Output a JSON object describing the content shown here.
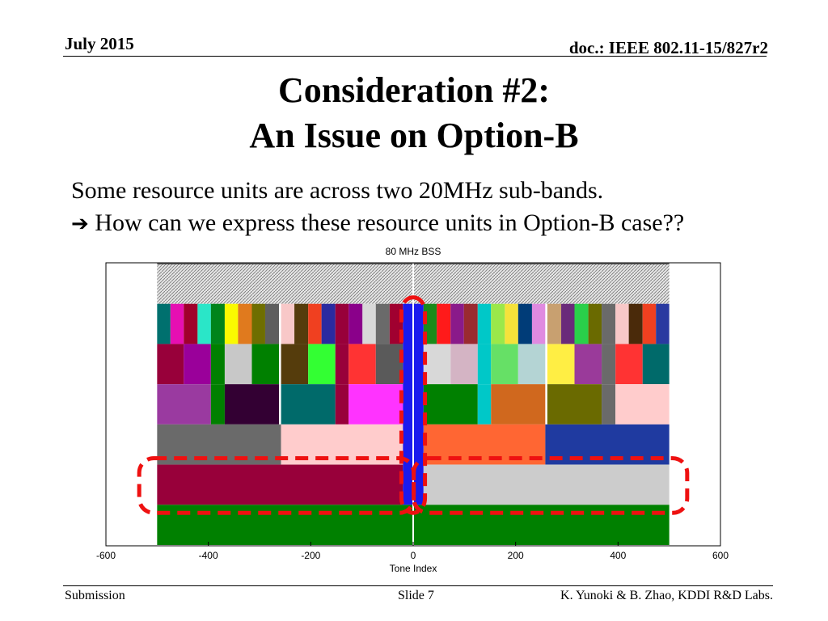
{
  "header": {
    "date": "July 2015",
    "doc": "doc.: IEEE 802.11-15/827r2"
  },
  "slide": {
    "title_line1": "Consideration #2:",
    "title_line2": "An Issue on Option-B",
    "body_line1": "Some resource units are across two 20MHz sub-bands.",
    "arrow_icon": "right-arrow-icon",
    "body_line2": "How can we express these resource units in Option-B case??"
  },
  "footer": {
    "left": "Submission",
    "center": "Slide 7",
    "right": "K. Yunoki & B. Zhao, KDDI R&D Labs."
  },
  "colors": {
    "highlight": "#ee1111",
    "dc_blue": "#1a1aee",
    "row_green": "#008000"
  },
  "chart_data": {
    "type": "heatmap",
    "title": "80 MHz BSS",
    "xlabel": "Tone Index",
    "ylabel": "",
    "xlim": [
      -600,
      600
    ],
    "xticks": [
      -600,
      -400,
      -200,
      0,
      200,
      400,
      600
    ],
    "grid": false,
    "rows": [
      {
        "level": 1,
        "pattern": "hatched",
        "blocks": [
          {
            "x0": -500,
            "x1": 500,
            "color": "#d8d8d8"
          }
        ]
      },
      {
        "level": 2,
        "blocks": [
          {
            "x0": -500,
            "x1": -474,
            "color": "#00706e"
          },
          {
            "x0": -474,
            "x1": -448,
            "color": "#e60fb2"
          },
          {
            "x0": -448,
            "x1": -421,
            "color": "#a0002c"
          },
          {
            "x0": -421,
            "x1": -395,
            "color": "#2ae6c8"
          },
          {
            "x0": -395,
            "x1": -368,
            "color": "#00841a"
          },
          {
            "x0": -368,
            "x1": -342,
            "color": "#fafa00"
          },
          {
            "x0": -342,
            "x1": -315,
            "color": "#e07a1e"
          },
          {
            "x0": -315,
            "x1": -289,
            "color": "#6e6e00"
          },
          {
            "x0": -289,
            "x1": -262,
            "color": "#5e5e5e"
          },
          {
            "x0": -262,
            "x1": -258,
            "color": "#ffffff"
          },
          {
            "x0": -258,
            "x1": -232,
            "color": "#f8c8c8"
          },
          {
            "x0": -232,
            "x1": -205,
            "color": "#553c0c"
          },
          {
            "x0": -205,
            "x1": -179,
            "color": "#f04020"
          },
          {
            "x0": -179,
            "x1": -152,
            "color": "#2a2aa0"
          },
          {
            "x0": -152,
            "x1": -126,
            "color": "#98003a"
          },
          {
            "x0": -126,
            "x1": -99,
            "color": "#8a008a"
          },
          {
            "x0": -99,
            "x1": -73,
            "color": "#d8d8d8"
          },
          {
            "x0": -73,
            "x1": -46,
            "color": "#6a6a6a"
          },
          {
            "x0": -46,
            "x1": -20,
            "color": "#a00030"
          },
          {
            "x0": 20,
            "x1": 46,
            "color": "#1a8a1a"
          },
          {
            "x0": 46,
            "x1": 73,
            "color": "#ff1a1a"
          },
          {
            "x0": 73,
            "x1": 99,
            "color": "#8a1a8a"
          },
          {
            "x0": 99,
            "x1": 126,
            "color": "#9a2a30"
          },
          {
            "x0": 126,
            "x1": 152,
            "color": "#00c8c8"
          },
          {
            "x0": 152,
            "x1": 179,
            "color": "#9be84a"
          },
          {
            "x0": 179,
            "x1": 205,
            "color": "#f5e23a"
          },
          {
            "x0": 205,
            "x1": 232,
            "color": "#003c78"
          },
          {
            "x0": 232,
            "x1": 258,
            "color": "#e08ae0"
          },
          {
            "x0": 258,
            "x1": 262,
            "color": "#ffffff"
          },
          {
            "x0": 262,
            "x1": 289,
            "color": "#c8a070"
          },
          {
            "x0": 289,
            "x1": 315,
            "color": "#6a2a7a"
          },
          {
            "x0": 315,
            "x1": 342,
            "color": "#2ad04a"
          },
          {
            "x0": 342,
            "x1": 368,
            "color": "#6a6a00"
          },
          {
            "x0": 368,
            "x1": 395,
            "color": "#6a6a6a"
          },
          {
            "x0": 395,
            "x1": 421,
            "color": "#f8c8c8"
          },
          {
            "x0": 421,
            "x1": 448,
            "color": "#4a2a0a"
          },
          {
            "x0": 448,
            "x1": 474,
            "color": "#f04020"
          },
          {
            "x0": 474,
            "x1": 500,
            "color": "#2a3aa0"
          }
        ]
      },
      {
        "level": 3,
        "blocks": [
          {
            "x0": -500,
            "x1": -448,
            "color": "#98003a"
          },
          {
            "x0": -448,
            "x1": -395,
            "color": "#9a009a"
          },
          {
            "x0": -395,
            "x1": -368,
            "color": "#008000"
          },
          {
            "x0": -368,
            "x1": -315,
            "color": "#c8c8c8"
          },
          {
            "x0": -315,
            "x1": -262,
            "color": "#008000"
          },
          {
            "x0": -262,
            "x1": -258,
            "color": "#ffffff"
          },
          {
            "x0": -258,
            "x1": -205,
            "color": "#553c0c"
          },
          {
            "x0": -205,
            "x1": -152,
            "color": "#33ff33"
          },
          {
            "x0": -152,
            "x1": -126,
            "color": "#98003a"
          },
          {
            "x0": -126,
            "x1": -73,
            "color": "#ff3333"
          },
          {
            "x0": -73,
            "x1": -20,
            "color": "#5a5a5a"
          },
          {
            "x0": 20,
            "x1": 73,
            "color": "#d8d8d8"
          },
          {
            "x0": 73,
            "x1": 126,
            "color": "#d4b4c4"
          },
          {
            "x0": 126,
            "x1": 152,
            "color": "#00c8c8"
          },
          {
            "x0": 152,
            "x1": 205,
            "color": "#66e066"
          },
          {
            "x0": 205,
            "x1": 258,
            "color": "#b4d4d4"
          },
          {
            "x0": 258,
            "x1": 262,
            "color": "#ffffff"
          },
          {
            "x0": 262,
            "x1": 315,
            "color": "#ffee44"
          },
          {
            "x0": 315,
            "x1": 368,
            "color": "#9a3a9a"
          },
          {
            "x0": 368,
            "x1": 395,
            "color": "#6a6a6a"
          },
          {
            "x0": 395,
            "x1": 448,
            "color": "#ff3333"
          },
          {
            "x0": 448,
            "x1": 500,
            "color": "#006a6a"
          }
        ]
      },
      {
        "level": 4,
        "blocks": [
          {
            "x0": -500,
            "x1": -395,
            "color": "#9a3aa0"
          },
          {
            "x0": -395,
            "x1": -368,
            "color": "#008000"
          },
          {
            "x0": -368,
            "x1": -262,
            "color": "#330033"
          },
          {
            "x0": -262,
            "x1": -258,
            "color": "#ffffff"
          },
          {
            "x0": -258,
            "x1": -152,
            "color": "#006a6a"
          },
          {
            "x0": -152,
            "x1": -126,
            "color": "#98003a"
          },
          {
            "x0": -126,
            "x1": -20,
            "color": "#ff33ff"
          },
          {
            "x0": 20,
            "x1": 126,
            "color": "#008000"
          },
          {
            "x0": 126,
            "x1": 152,
            "color": "#00c8c8"
          },
          {
            "x0": 152,
            "x1": 258,
            "color": "#d0681e"
          },
          {
            "x0": 258,
            "x1": 262,
            "color": "#ffffff"
          },
          {
            "x0": 262,
            "x1": 368,
            "color": "#6a6a00"
          },
          {
            "x0": 368,
            "x1": 395,
            "color": "#6a6a6a"
          },
          {
            "x0": 395,
            "x1": 500,
            "color": "#ffcccc"
          }
        ]
      },
      {
        "level": 5,
        "blocks": [
          {
            "x0": -500,
            "x1": -258,
            "color": "#6a6a6a"
          },
          {
            "x0": -258,
            "x1": -20,
            "color": "#ffcccc"
          },
          {
            "x0": 20,
            "x1": 258,
            "color": "#ff6633"
          },
          {
            "x0": 258,
            "x1": 500,
            "color": "#1f3aa0"
          }
        ]
      },
      {
        "level": 6,
        "blocks": [
          {
            "x0": -500,
            "x1": -20,
            "color": "#98003a"
          },
          {
            "x0": 20,
            "x1": 500,
            "color": "#cccccc"
          }
        ]
      },
      {
        "level": 7,
        "blocks": [
          {
            "x0": -500,
            "x1": 500,
            "color": "#008000"
          }
        ]
      }
    ],
    "dc_strip": {
      "x0": -20,
      "x1": 20,
      "color": "#1a1aee",
      "rows": [
        2,
        6
      ]
    },
    "annotations": [
      {
        "type": "dashed-rounded-box",
        "color": "#ee1111",
        "x0": -535,
        "x1": 1,
        "rows": [
          6,
          6
        ]
      },
      {
        "type": "dashed-rounded-box",
        "color": "#ee1111",
        "x0": 1,
        "x1": 535,
        "rows": [
          6,
          6
        ]
      },
      {
        "type": "dashed-rounded-box",
        "color": "#ee1111",
        "x0": -23,
        "x1": 23,
        "rows": [
          2,
          6
        ]
      }
    ]
  }
}
